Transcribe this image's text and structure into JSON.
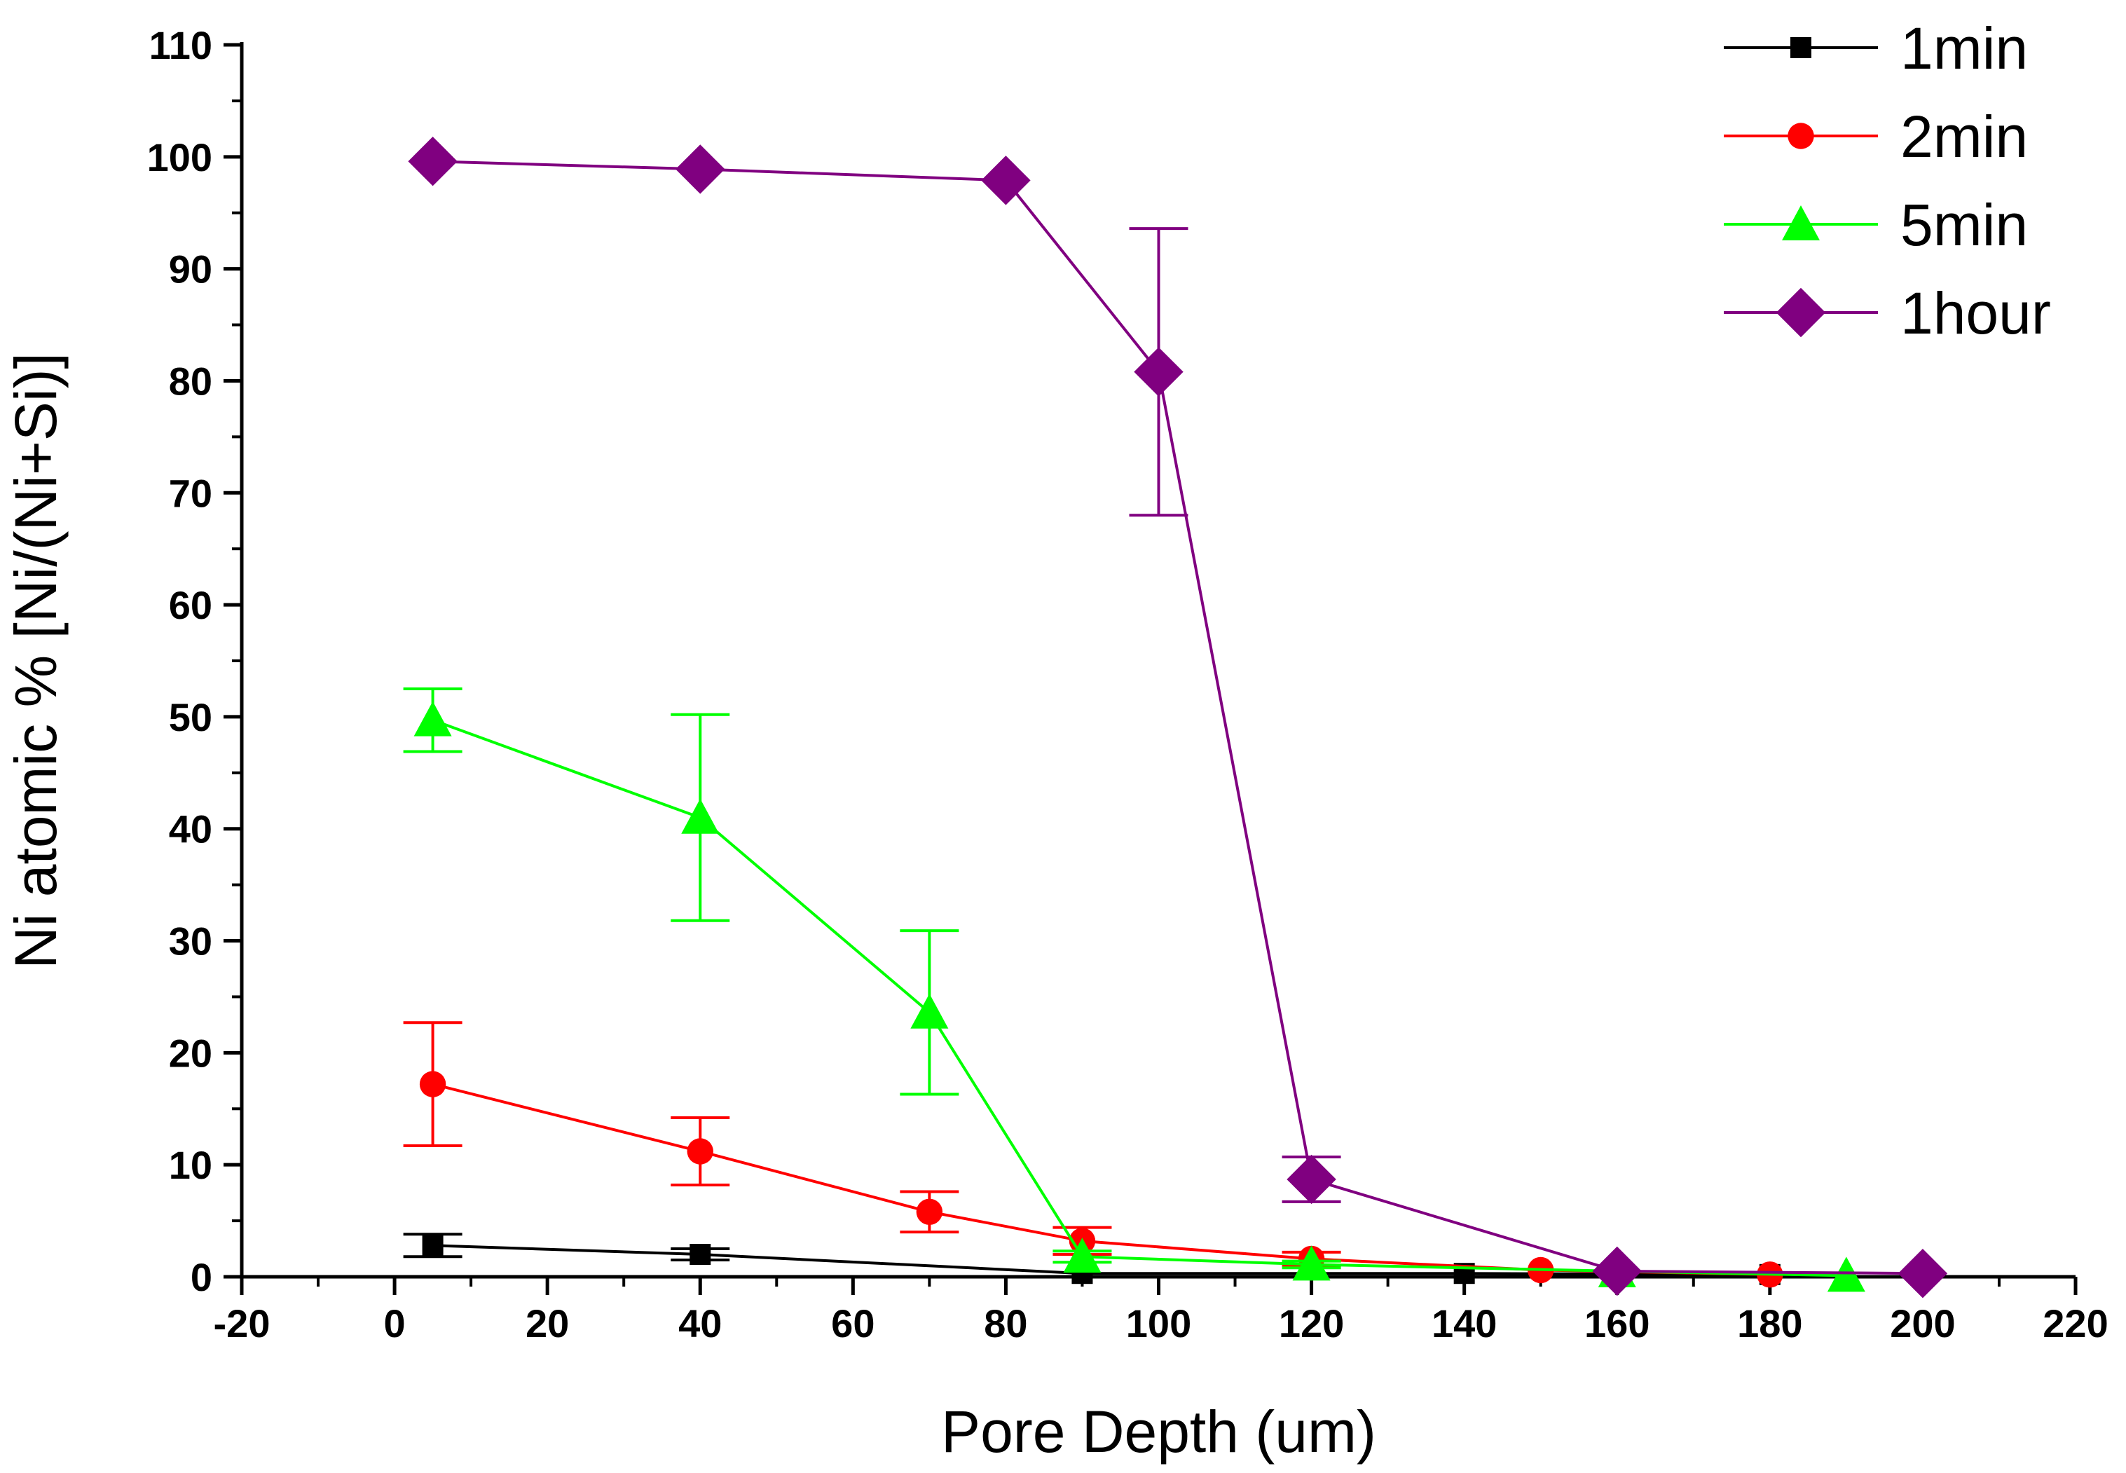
{
  "chart_data": {
    "type": "line",
    "xlabel": "Pore Depth (um)",
    "ylabel": "Ni atomic % [Ni/(Ni+Si)]",
    "xlim": [
      -20,
      220
    ],
    "ylim": [
      0,
      110
    ],
    "xticks": [
      -20,
      0,
      20,
      40,
      60,
      80,
      100,
      120,
      140,
      160,
      180,
      200,
      220
    ],
    "yticks": [
      0,
      10,
      20,
      30,
      40,
      50,
      60,
      70,
      80,
      90,
      100,
      110
    ],
    "legend_position": "top-right",
    "series": [
      {
        "name": "1min",
        "color": "#000000",
        "marker": "square",
        "points": [
          {
            "x": 5,
            "y": 2.8,
            "err": 1.0
          },
          {
            "x": 40,
            "y": 2.0,
            "err": 0.5
          },
          {
            "x": 90,
            "y": 0.3,
            "err": 0
          },
          {
            "x": 140,
            "y": 0.3,
            "err": 0
          },
          {
            "x": 180,
            "y": 0.2,
            "err": 0
          }
        ]
      },
      {
        "name": "2min",
        "color": "#ff0000",
        "marker": "circle",
        "points": [
          {
            "x": 5,
            "y": 17.2,
            "err": 5.5
          },
          {
            "x": 40,
            "y": 11.2,
            "err": 3.0
          },
          {
            "x": 70,
            "y": 5.8,
            "err": 1.8
          },
          {
            "x": 90,
            "y": 3.2,
            "err": 1.2
          },
          {
            "x": 120,
            "y": 1.6,
            "err": 0.6
          },
          {
            "x": 150,
            "y": 0.6,
            "err": 0
          },
          {
            "x": 180,
            "y": 0.2,
            "err": 0
          }
        ]
      },
      {
        "name": "5min",
        "color": "#00ff00",
        "marker": "triangle",
        "points": [
          {
            "x": 5,
            "y": 49.7,
            "err": 2.8
          },
          {
            "x": 40,
            "y": 41.0,
            "err": 9.2
          },
          {
            "x": 70,
            "y": 23.6,
            "err": 7.3
          },
          {
            "x": 90,
            "y": 1.8,
            "err": 0.5
          },
          {
            "x": 120,
            "y": 1.1,
            "err": 0.3
          },
          {
            "x": 160,
            "y": 0.5,
            "err": 0
          },
          {
            "x": 190,
            "y": 0.1,
            "err": 0
          }
        ]
      },
      {
        "name": "1hour",
        "color": "#800080",
        "marker": "diamond",
        "points": [
          {
            "x": 5,
            "y": 99.6,
            "err": 0
          },
          {
            "x": 40,
            "y": 98.9,
            "err": 0
          },
          {
            "x": 80,
            "y": 97.9,
            "err": 0
          },
          {
            "x": 100,
            "y": 80.8,
            "err": 12.8
          },
          {
            "x": 120,
            "y": 8.7,
            "err": 2.0
          },
          {
            "x": 160,
            "y": 0.5,
            "err": 0
          },
          {
            "x": 200,
            "y": 0.3,
            "err": 0
          }
        ]
      }
    ]
  }
}
